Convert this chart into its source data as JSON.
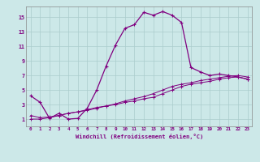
{
  "xlabel": "Windchill (Refroidissement éolien,°C)",
  "ylabel": "",
  "bg_color": "#cce8e8",
  "line_color": "#800080",
  "grid_color": "#aacccc",
  "xlim": [
    -0.5,
    23.5
  ],
  "ylim": [
    0,
    16.5
  ],
  "xticks": [
    0,
    1,
    2,
    3,
    4,
    5,
    6,
    7,
    8,
    9,
    10,
    11,
    12,
    13,
    14,
    15,
    16,
    17,
    18,
    19,
    20,
    21,
    22,
    23
  ],
  "yticks": [
    1,
    3,
    5,
    7,
    9,
    11,
    13,
    15
  ],
  "curve1_x": [
    0,
    1,
    2,
    3,
    4,
    5,
    6,
    7,
    8,
    9,
    10,
    11,
    12,
    13,
    14,
    15,
    16,
    17,
    18,
    19,
    20,
    21,
    22,
    23
  ],
  "curve1_y": [
    4.2,
    3.3,
    1.1,
    1.8,
    1.0,
    1.1,
    2.5,
    5.0,
    8.3,
    11.2,
    13.5,
    14.0,
    15.7,
    15.3,
    15.8,
    15.3,
    14.3,
    8.1,
    7.5,
    7.0,
    7.2,
    7.0,
    6.8,
    6.5
  ],
  "curve2_x": [
    0,
    1,
    2,
    3,
    4,
    5,
    6,
    7,
    8,
    9,
    10,
    11,
    12,
    13,
    14,
    15,
    16,
    17,
    18,
    19,
    20,
    21,
    22,
    23
  ],
  "curve2_y": [
    1.0,
    1.0,
    1.2,
    1.5,
    1.8,
    2.0,
    2.3,
    2.6,
    2.8,
    3.0,
    3.3,
    3.5,
    3.8,
    4.0,
    4.5,
    5.0,
    5.5,
    5.8,
    6.0,
    6.2,
    6.5,
    6.7,
    6.8,
    6.5
  ],
  "curve3_x": [
    0,
    1,
    2,
    3,
    4,
    5,
    6,
    7,
    8,
    9,
    10,
    11,
    12,
    13,
    14,
    15,
    16,
    17,
    18,
    19,
    20,
    21,
    22,
    23
  ],
  "curve3_y": [
    1.5,
    1.2,
    1.3,
    1.5,
    1.8,
    2.0,
    2.2,
    2.5,
    2.8,
    3.1,
    3.5,
    3.8,
    4.1,
    4.5,
    5.0,
    5.5,
    5.8,
    6.0,
    6.3,
    6.5,
    6.7,
    6.9,
    7.0,
    6.8
  ]
}
